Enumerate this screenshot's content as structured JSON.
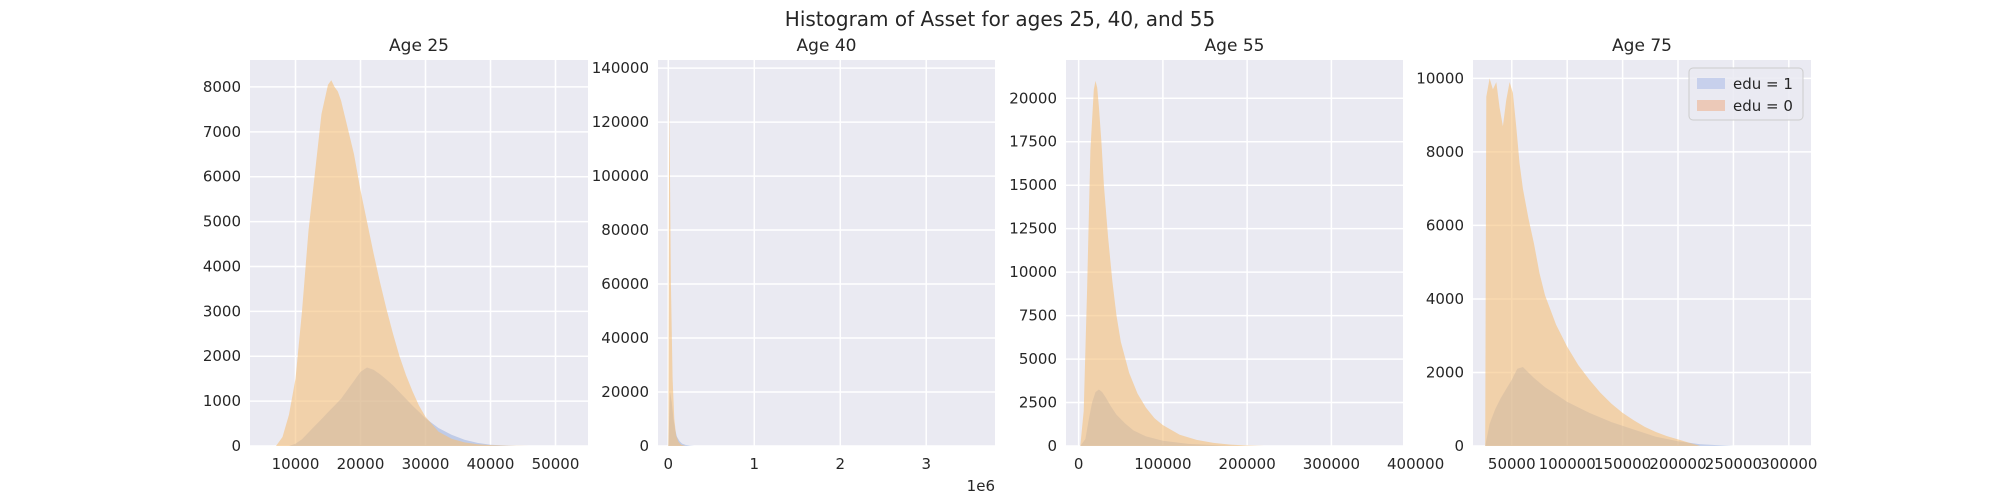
{
  "figure": {
    "title": "Histogram of Asset for ages 25, 40, and 55"
  },
  "colors": {
    "edu1": "#9bb1de",
    "edu0": "#f5c07a",
    "edu1_legend": "#c7d0ec",
    "edu0_legend": "#ecc9b8"
  },
  "legend": {
    "placement": "top-right",
    "entries": [
      "edu = 1",
      "edu = 0"
    ]
  },
  "chart_data": [
    {
      "type": "histogram",
      "title": "Age 25",
      "xlim": [
        3000,
        55000
      ],
      "ylim": [
        0,
        8600
      ],
      "xticks": [
        10000,
        20000,
        30000,
        40000,
        50000
      ],
      "xtick_labels": [
        "10000",
        "20000",
        "30000",
        "40000",
        "50000"
      ],
      "yticks": [
        0,
        1000,
        2000,
        3000,
        4000,
        5000,
        6000,
        7000,
        8000
      ],
      "ytick_labels": [
        "0",
        "1000",
        "2000",
        "3000",
        "4000",
        "5000",
        "6000",
        "7000",
        "8000"
      ],
      "offset_label": "",
      "series": [
        {
          "name": "edu = 1",
          "x": [
            7500,
            9000,
            10000,
            11000,
            12000,
            13000,
            14000,
            15000,
            16000,
            17000,
            18000,
            19000,
            20000,
            21000,
            22000,
            23000,
            24000,
            25000,
            26000,
            27000,
            28000,
            29000,
            30000,
            32000,
            34000,
            36000,
            38000,
            40000,
            44000
          ],
          "y": [
            0,
            0,
            50,
            150,
            300,
            450,
            600,
            750,
            900,
            1050,
            1250,
            1450,
            1650,
            1750,
            1700,
            1600,
            1480,
            1350,
            1200,
            1050,
            900,
            760,
            620,
            400,
            250,
            140,
            70,
            30,
            0
          ]
        },
        {
          "name": "edu = 0",
          "x": [
            7000,
            8000,
            9000,
            10000,
            11000,
            12000,
            13000,
            14000,
            15000,
            15500,
            16000,
            16500,
            17000,
            18000,
            19000,
            20000,
            21000,
            22000,
            23000,
            24000,
            25000,
            26000,
            27000,
            28000,
            29000,
            30000,
            32000,
            34000,
            36000,
            38000,
            40000,
            43000,
            46000,
            48000
          ],
          "y": [
            0,
            200,
            700,
            1500,
            3000,
            4800,
            6100,
            7400,
            8050,
            8150,
            8000,
            7900,
            7700,
            7100,
            6500,
            5700,
            5000,
            4300,
            3650,
            3050,
            2500,
            2000,
            1580,
            1220,
            900,
            650,
            320,
            160,
            80,
            40,
            20,
            5,
            0,
            0
          ]
        }
      ]
    },
    {
      "type": "histogram",
      "title": "Age 40",
      "xlim": [
        -0.12,
        3.8
      ],
      "ylim": [
        0,
        143000
      ],
      "xticks": [
        0,
        1,
        2,
        3
      ],
      "xtick_labels": [
        "0",
        "1",
        "2",
        "3"
      ],
      "yticks": [
        0,
        20000,
        40000,
        60000,
        80000,
        100000,
        120000,
        140000
      ],
      "ytick_labels": [
        "0",
        "20000",
        "40000",
        "60000",
        "80000",
        "100000",
        "120000",
        "140000"
      ],
      "offset_label": "1e6",
      "series": [
        {
          "name": "edu = 1",
          "x": [
            0,
            0.02,
            0.04,
            0.06,
            0.08,
            0.1,
            0.13,
            0.16,
            0.2,
            0.25,
            0.3
          ],
          "y": [
            0,
            20000,
            16000,
            10000,
            6000,
            3500,
            1800,
            900,
            400,
            150,
            0
          ]
        },
        {
          "name": "edu = 0",
          "x": [
            0,
            0.01,
            0.02,
            0.03,
            0.05,
            0.07,
            0.09,
            0.12,
            0.15,
            0.2
          ],
          "y": [
            0,
            131000,
            100000,
            60000,
            25000,
            10000,
            4000,
            1500,
            500,
            0
          ]
        }
      ]
    },
    {
      "type": "histogram",
      "title": "Age 55",
      "xlim": [
        -15000,
        385000
      ],
      "ylim": [
        0,
        22200
      ],
      "xticks": [
        0,
        100000,
        200000,
        300000,
        400000
      ],
      "xtick_labels": [
        "0",
        "100000",
        "200000",
        "300000",
        "400000"
      ],
      "yticks": [
        0,
        2500,
        5000,
        7500,
        10000,
        12500,
        15000,
        17500,
        20000
      ],
      "ytick_labels": [
        "0",
        "2500",
        "5000",
        "7500",
        "10000",
        "12500",
        "15000",
        "17500",
        "20000"
      ],
      "offset_label": "",
      "series": [
        {
          "name": "edu = 1",
          "x": [
            2000,
            8000,
            12000,
            16000,
            20000,
            24000,
            28000,
            32000,
            38000,
            45000,
            55000,
            65000,
            80000,
            100000,
            130000,
            170000,
            200000
          ],
          "y": [
            0,
            400,
            1500,
            2500,
            3100,
            3250,
            3100,
            2800,
            2300,
            1800,
            1300,
            900,
            550,
            300,
            120,
            30,
            0
          ]
        },
        {
          "name": "edu = 0",
          "x": [
            2000,
            6000,
            10000,
            14000,
            18000,
            20000,
            22000,
            24000,
            27000,
            30000,
            35000,
            40000,
            45000,
            50000,
            60000,
            70000,
            80000,
            90000,
            100000,
            120000,
            140000,
            160000,
            180000,
            200000,
            220000
          ],
          "y": [
            0,
            2000,
            9000,
            17000,
            20500,
            21000,
            20600,
            19500,
            17500,
            15000,
            12000,
            9500,
            7500,
            6000,
            4200,
            3000,
            2200,
            1600,
            1200,
            650,
            350,
            180,
            80,
            30,
            0
          ]
        }
      ]
    },
    {
      "type": "histogram",
      "title": "Age 75",
      "xlim": [
        15000,
        320000
      ],
      "ylim": [
        0,
        10500
      ],
      "xticks": [
        50000,
        100000,
        150000,
        200000,
        250000,
        300000
      ],
      "xtick_labels": [
        "50000",
        "100000",
        "150000",
        "200000",
        "250000",
        "300000"
      ],
      "yticks": [
        0,
        2000,
        4000,
        6000,
        8000,
        10000
      ],
      "ytick_labels": [
        "0",
        "2000",
        "4000",
        "6000",
        "8000",
        "10000"
      ],
      "offset_label": "",
      "series": [
        {
          "name": "edu = 1",
          "x": [
            26000,
            30000,
            35000,
            40000,
            45000,
            50000,
            55000,
            60000,
            65000,
            70000,
            80000,
            90000,
            100000,
            120000,
            140000,
            160000,
            180000,
            200000,
            220000,
            250000
          ],
          "y": [
            0,
            600,
            1000,
            1300,
            1550,
            1800,
            2100,
            2150,
            2000,
            1850,
            1600,
            1400,
            1200,
            900,
            650,
            450,
            250,
            130,
            50,
            0
          ]
        },
        {
          "name": "edu = 0",
          "x": [
            26000,
            27000,
            30000,
            33000,
            36000,
            39000,
            42000,
            45000,
            48000,
            51000,
            54000,
            57000,
            60000,
            65000,
            70000,
            75000,
            80000,
            90000,
            100000,
            110000,
            120000,
            130000,
            140000,
            150000,
            160000,
            170000,
            180000,
            190000,
            200000,
            210000,
            220000
          ],
          "y": [
            0,
            9500,
            10000,
            9700,
            9900,
            9200,
            8700,
            9400,
            9900,
            9600,
            8700,
            7700,
            7000,
            6200,
            5500,
            4700,
            4100,
            3300,
            2700,
            2200,
            1800,
            1450,
            1150,
            900,
            700,
            520,
            380,
            270,
            180,
            90,
            0
          ]
        }
      ]
    }
  ]
}
